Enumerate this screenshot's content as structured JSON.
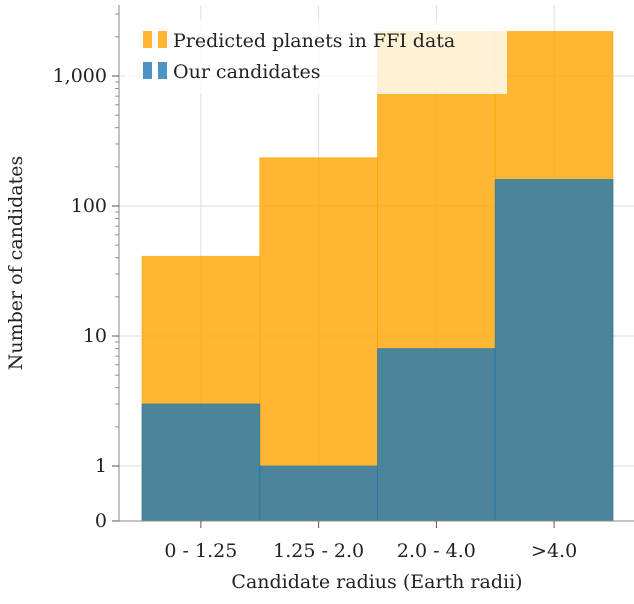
{
  "chart_data": {
    "type": "bar",
    "categories": [
      "0 - 1.25",
      "1.25 - 2.0",
      "2.0 - 4.0",
      ">4.0"
    ],
    "series": [
      {
        "name": "Predicted planets in FFI data",
        "values": [
          41,
          235,
          2200,
          2200
        ],
        "color": "#FFA500"
      },
      {
        "name": "Our candidates",
        "values": [
          3,
          1,
          8,
          160
        ],
        "color": "#1F77B4"
      }
    ],
    "xlabel": "Candidate radius (Earth radii)",
    "ylabel": "Number of candidates",
    "yscale": "symlog",
    "ylim": [
      0,
      3500
    ],
    "yticks": [
      0,
      1,
      10,
      100,
      1000
    ],
    "ytick_labels": [
      "0",
      "1",
      "10",
      "100",
      "1,000"
    ],
    "grid": true,
    "legend_position": "top-left"
  }
}
